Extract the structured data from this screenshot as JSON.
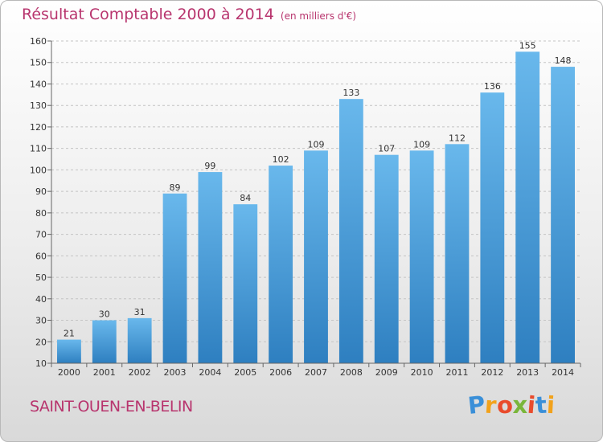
{
  "header": {
    "title": "Résultat Comptable 2000 à 2014",
    "subtitle": "(en milliers d'€)"
  },
  "commune": "SAINT-OUEN-EN-BELIN",
  "logo": {
    "letters": [
      "P",
      "r",
      "o",
      "x",
      "i",
      "t",
      "i"
    ],
    "colors": [
      "#3a8fd8",
      "#f2a21b",
      "#e94b2c",
      "#7ab63a",
      "#e94b2c",
      "#3a8fd8",
      "#f2a21b"
    ]
  },
  "colors": {
    "bar_top": "#69b8ec",
    "bar_bottom": "#2e7fc0",
    "title": "#b8356e"
  },
  "chart_data": {
    "type": "bar",
    "title": "Résultat Comptable 2000 à 2014",
    "ylabel": "(en milliers d'€)",
    "xlabel": "",
    "categories": [
      "2000",
      "2001",
      "2002",
      "2003",
      "2004",
      "2005",
      "2006",
      "2007",
      "2008",
      "2009",
      "2010",
      "2011",
      "2012",
      "2013",
      "2014"
    ],
    "values": [
      21,
      30,
      31,
      89,
      99,
      84,
      102,
      109,
      133,
      107,
      109,
      112,
      136,
      155,
      148
    ],
    "ylim": [
      10,
      160
    ],
    "yticks": [
      10,
      20,
      30,
      40,
      50,
      60,
      70,
      80,
      90,
      100,
      110,
      120,
      130,
      140,
      150,
      160
    ],
    "grid": true
  }
}
